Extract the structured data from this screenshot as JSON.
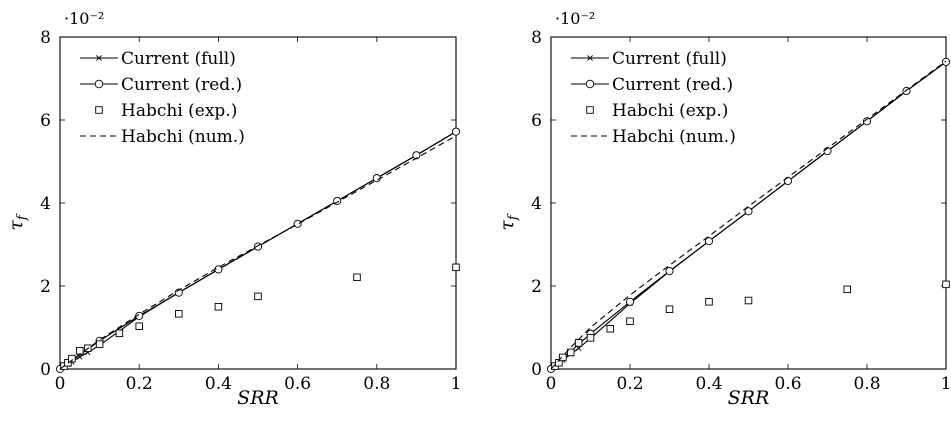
{
  "chart_data": [
    {
      "type": "line",
      "ylabel": "τ_f",
      "xlabel": "SRR",
      "y_multiplier_label": "·10⁻²",
      "xlim": [
        0,
        1
      ],
      "ylim": [
        0,
        8
      ],
      "x_ticks": [
        "0",
        "0.2",
        "0.4",
        "0.6",
        "0.8",
        "1"
      ],
      "x_tick_values": [
        0,
        0.2,
        0.4,
        0.6,
        0.8,
        1
      ],
      "y_ticks": [
        "0",
        "2",
        "4",
        "6",
        "8"
      ],
      "y_tick_values": [
        0,
        2,
        4,
        6,
        8
      ],
      "legend_position": "top-left",
      "series": [
        {
          "name": "Current (full)",
          "style": "solid-cross",
          "x": [
            0,
            0.01,
            0.02,
            0.03,
            0.05,
            0.07,
            0.1,
            0.2,
            0.3,
            0.4,
            0.5,
            0.6,
            0.7,
            0.8,
            0.9,
            1
          ],
          "y": [
            0,
            0.06,
            0.11,
            0.17,
            0.29,
            0.4,
            0.57,
            1.26,
            1.84,
            2.4,
            2.95,
            3.5,
            4.05,
            4.6,
            5.15,
            5.72
          ]
        },
        {
          "name": "Current (red.)",
          "style": "solid-circle",
          "x": [
            0,
            0.1,
            0.2,
            0.3,
            0.4,
            0.5,
            0.6,
            0.7,
            0.8,
            0.9,
            1
          ],
          "y": [
            0,
            0.68,
            1.28,
            1.84,
            2.4,
            2.95,
            3.5,
            4.05,
            4.6,
            5.15,
            5.72
          ]
        },
        {
          "name": "Habchi (exp.)",
          "style": "square",
          "x": [
            0.01,
            0.02,
            0.03,
            0.05,
            0.07,
            0.1,
            0.15,
            0.2,
            0.3,
            0.4,
            0.5,
            0.75,
            1
          ],
          "y": [
            0.07,
            0.15,
            0.25,
            0.44,
            0.5,
            0.6,
            0.86,
            1.03,
            1.33,
            1.5,
            1.75,
            2.21,
            2.45
          ]
        },
        {
          "name": "Habchi (num.)",
          "style": "dashed",
          "x": [
            0,
            0.05,
            0.1,
            0.2,
            0.3,
            0.4,
            0.5,
            0.6,
            0.7,
            0.8,
            0.9,
            1
          ],
          "y": [
            0,
            0.35,
            0.7,
            1.32,
            1.9,
            2.45,
            2.97,
            3.49,
            4.02,
            4.55,
            5.08,
            5.62
          ]
        }
      ]
    },
    {
      "type": "line",
      "ylabel": "τ_f",
      "xlabel": "SRR",
      "y_multiplier_label": "·10⁻²",
      "xlim": [
        0,
        1
      ],
      "ylim": [
        0,
        8
      ],
      "x_ticks": [
        "0",
        "0.2",
        "0.4",
        "0.6",
        "0.8",
        "1"
      ],
      "x_tick_values": [
        0,
        0.2,
        0.4,
        0.6,
        0.8,
        1
      ],
      "y_ticks": [
        "0",
        "2",
        "4",
        "6",
        "8"
      ],
      "y_tick_values": [
        0,
        2,
        4,
        6,
        8
      ],
      "legend_position": "top-left",
      "series": [
        {
          "name": "Current (full)",
          "style": "solid-cross",
          "x": [
            0,
            0.01,
            0.02,
            0.03,
            0.05,
            0.07,
            0.1,
            0.2,
            0.3,
            0.4,
            0.5,
            0.6,
            0.7,
            0.8,
            0.9,
            1
          ],
          "y": [
            0,
            0.07,
            0.14,
            0.21,
            0.36,
            0.5,
            0.74,
            1.58,
            2.35,
            3.08,
            3.8,
            4.53,
            5.25,
            5.97,
            6.7,
            7.4
          ]
        },
        {
          "name": "Current (red.)",
          "style": "solid-circle",
          "x": [
            0,
            0.1,
            0.2,
            0.3,
            0.4,
            0.5,
            0.6,
            0.7,
            0.8,
            0.9,
            1
          ],
          "y": [
            0,
            0.85,
            1.62,
            2.36,
            3.08,
            3.8,
            4.53,
            5.25,
            5.97,
            6.7,
            7.4
          ]
        },
        {
          "name": "Habchi (exp.)",
          "style": "square",
          "x": [
            0.01,
            0.02,
            0.03,
            0.05,
            0.07,
            0.1,
            0.15,
            0.2,
            0.3,
            0.4,
            0.5,
            0.75,
            1
          ],
          "y": [
            0.07,
            0.15,
            0.28,
            0.4,
            0.63,
            0.75,
            0.97,
            1.15,
            1.44,
            1.62,
            1.65,
            1.92,
            2.04
          ]
        },
        {
          "name": "Habchi (num.)",
          "style": "dashed",
          "x": [
            0,
            0.05,
            0.1,
            0.2,
            0.3,
            0.4,
            0.5,
            0.6,
            0.7,
            0.8,
            0.9,
            1
          ],
          "y": [
            0,
            0.52,
            1.0,
            1.78,
            2.5,
            3.2,
            3.92,
            4.62,
            5.32,
            6.02,
            6.72,
            7.42
          ]
        }
      ]
    }
  ]
}
